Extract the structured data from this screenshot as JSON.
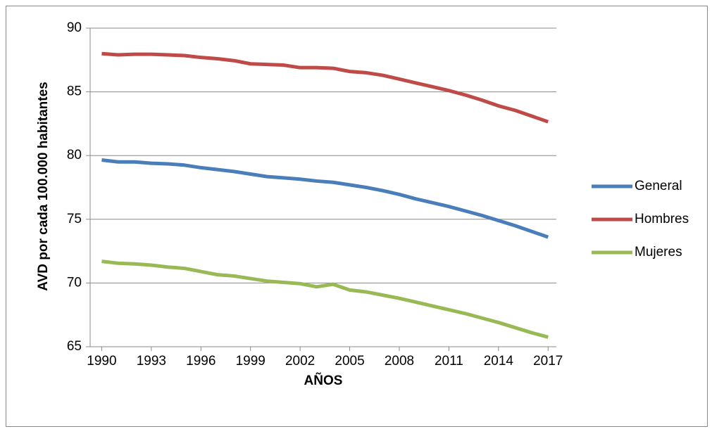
{
  "chart_data": {
    "type": "line",
    "xlabel": "AÑOS",
    "ylabel": "AVD por cada 100.000 habitantes",
    "x": [
      1990,
      1991,
      1992,
      1993,
      1994,
      1995,
      1996,
      1997,
      1998,
      1999,
      2000,
      2001,
      2002,
      2003,
      2004,
      2005,
      2006,
      2007,
      2008,
      2009,
      2010,
      2011,
      2012,
      2013,
      2014,
      2015,
      2016,
      2017
    ],
    "series": [
      {
        "name": "General",
        "color": "#4a7ebb",
        "values": [
          79.65,
          79.5,
          79.5,
          79.4,
          79.35,
          79.25,
          79.05,
          78.9,
          78.75,
          78.55,
          78.35,
          78.25,
          78.15,
          78.0,
          77.9,
          77.7,
          77.5,
          77.25,
          76.95,
          76.6,
          76.3,
          76.0,
          75.65,
          75.3,
          74.9,
          74.5,
          74.05,
          73.6
        ]
      },
      {
        "name": "Hombres",
        "color": "#be4b48",
        "values": [
          88.0,
          87.9,
          87.95,
          87.95,
          87.9,
          87.85,
          87.7,
          87.6,
          87.45,
          87.2,
          87.15,
          87.1,
          86.9,
          86.9,
          86.85,
          86.6,
          86.5,
          86.3,
          86.0,
          85.7,
          85.4,
          85.1,
          84.75,
          84.35,
          83.9,
          83.55,
          83.1,
          82.65
        ]
      },
      {
        "name": "Mujeres",
        "color": "#98b954",
        "values": [
          71.7,
          71.55,
          71.5,
          71.4,
          71.25,
          71.15,
          70.9,
          70.65,
          70.55,
          70.35,
          70.15,
          70.05,
          69.95,
          69.7,
          69.9,
          69.45,
          69.3,
          69.05,
          68.8,
          68.5,
          68.2,
          67.9,
          67.6,
          67.25,
          66.9,
          66.5,
          66.1,
          65.75
        ]
      }
    ],
    "xlim": [
      1989.3,
      2017.5
    ],
    "xticks": [
      1990,
      1993,
      1996,
      1999,
      2002,
      2005,
      2008,
      2011,
      2014,
      2017
    ],
    "ylim": [
      65,
      90
    ],
    "yticks": [
      65,
      70,
      75,
      80,
      85,
      90
    ],
    "grid": true,
    "legend": "right"
  }
}
